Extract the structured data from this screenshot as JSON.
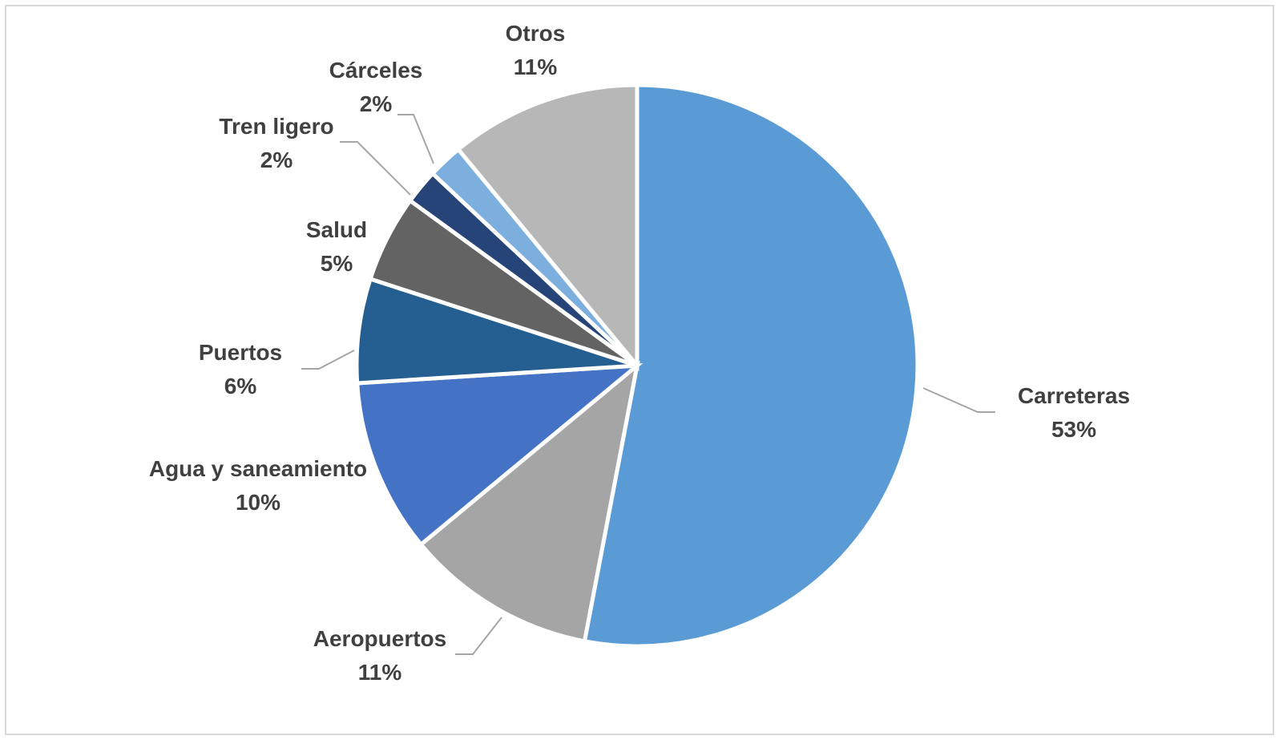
{
  "chart_data": {
    "type": "pie",
    "title": "",
    "legend": "none",
    "slices": [
      {
        "label": "Carreteras",
        "value": 53,
        "value_label": "53%",
        "color": "#5B9BD5"
      },
      {
        "label": "Aeropuertos",
        "value": 11,
        "value_label": "11%",
        "color": "#A5A5A5"
      },
      {
        "label": "Agua y saneamiento",
        "value": 10,
        "value_label": "10%",
        "color": "#4472C4"
      },
      {
        "label": "Puertos",
        "value": 6,
        "value_label": "6%",
        "color": "#255E91"
      },
      {
        "label": "Salud",
        "value": 5,
        "value_label": "5%",
        "color": "#636363"
      },
      {
        "label": "Tren ligero",
        "value": 2,
        "value_label": "2%",
        "color": "#264478"
      },
      {
        "label": "Cárceles",
        "value": 2,
        "value_label": "2%",
        "color": "#7CAFDD"
      },
      {
        "label": "Otros",
        "value": 11,
        "value_label": "11%",
        "color": "#B7B7B7"
      }
    ]
  }
}
